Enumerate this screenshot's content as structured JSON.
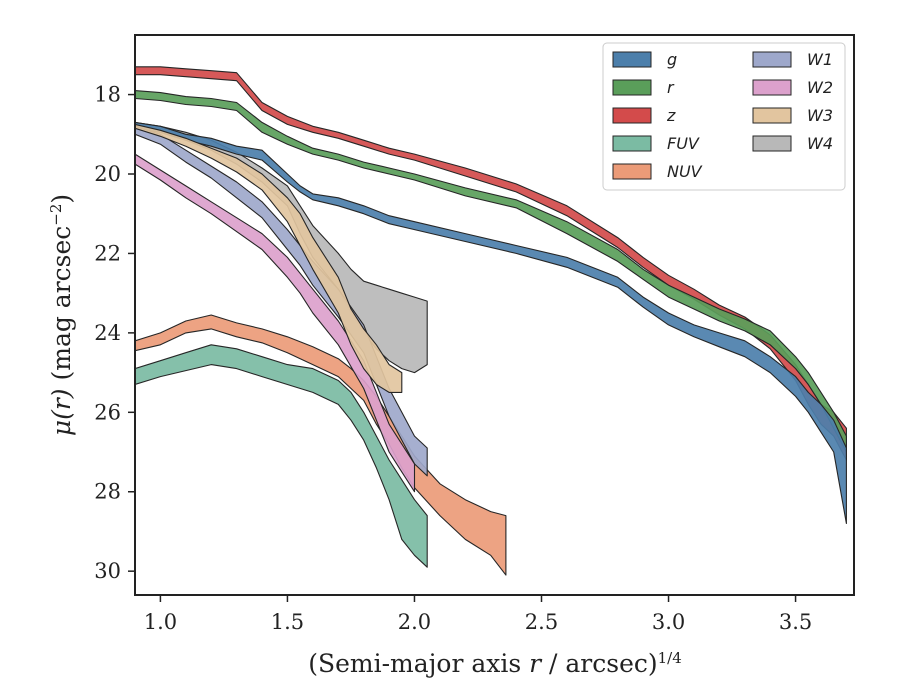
{
  "chart_data": {
    "type": "area",
    "xlabel": "(Semi-major axis r / arcsec)^1/4",
    "xlabel_parts": {
      "prefix": "(Semi-major axis ",
      "var": "r",
      "suffix": " / arcsec)",
      "sup": "1/4"
    },
    "ylabel": "μ(r) (mag arcsec^−2)",
    "ylabel_parts": {
      "var": "μ(r)",
      "text": " (mag arcsec",
      "sup": "−2",
      "close": ")"
    },
    "xlim": [
      0.9,
      3.73
    ],
    "ylim": [
      30.6,
      16.5
    ],
    "y_inverted": true,
    "xticks": [
      1.0,
      1.5,
      2.0,
      2.5,
      3.0,
      3.5
    ],
    "xtick_labels": [
      "1.0",
      "1.5",
      "2.0",
      "2.5",
      "3.0",
      "3.5"
    ],
    "yticks": [
      18,
      20,
      22,
      24,
      26,
      28,
      30
    ],
    "ytick_labels": [
      "18",
      "20",
      "22",
      "24",
      "26",
      "28",
      "30"
    ],
    "grid": false,
    "legend": {
      "placement": "top-right",
      "columns": 2
    },
    "series": [
      {
        "name": "g",
        "color": "#4c7fab",
        "zorder": 3,
        "x": [
          0.9,
          1.0,
          1.1,
          1.2,
          1.3,
          1.4,
          1.5,
          1.55,
          1.6,
          1.7,
          1.8,
          1.9,
          2.0,
          2.2,
          2.4,
          2.6,
          2.8,
          2.9,
          3.0,
          3.1,
          3.2,
          3.3,
          3.4,
          3.5,
          3.55,
          3.6,
          3.65,
          3.7
        ],
        "y_top": [
          18.7,
          18.8,
          19.0,
          19.1,
          19.3,
          19.4,
          20.0,
          20.3,
          20.5,
          20.6,
          20.8,
          21.05,
          21.2,
          21.5,
          21.8,
          22.1,
          22.6,
          23.1,
          23.5,
          23.8,
          24.0,
          24.2,
          24.6,
          25.1,
          25.5,
          25.8,
          26.2,
          26.9
        ],
        "y_bot": [
          18.85,
          18.95,
          19.15,
          19.3,
          19.5,
          19.65,
          20.2,
          20.45,
          20.65,
          20.8,
          21.0,
          21.25,
          21.4,
          21.7,
          22.0,
          22.35,
          22.85,
          23.35,
          23.8,
          24.1,
          24.35,
          24.6,
          25.0,
          25.6,
          26.0,
          26.5,
          27.0,
          28.8
        ]
      },
      {
        "name": "r",
        "color": "#5a9e5a",
        "zorder": 2,
        "x": [
          0.9,
          1.0,
          1.1,
          1.2,
          1.3,
          1.4,
          1.5,
          1.6,
          1.7,
          1.8,
          1.9,
          2.0,
          2.2,
          2.4,
          2.6,
          2.8,
          2.9,
          3.0,
          3.1,
          3.2,
          3.3,
          3.4,
          3.5,
          3.55,
          3.6,
          3.65,
          3.7
        ],
        "y_top": [
          17.9,
          17.95,
          18.05,
          18.1,
          18.2,
          18.7,
          19.05,
          19.35,
          19.5,
          19.7,
          19.85,
          20.0,
          20.35,
          20.65,
          21.2,
          21.9,
          22.4,
          22.8,
          23.1,
          23.4,
          23.65,
          23.95,
          24.6,
          25.0,
          25.5,
          26.0,
          26.6
        ],
        "y_bot": [
          18.1,
          18.15,
          18.25,
          18.3,
          18.4,
          18.95,
          19.25,
          19.5,
          19.65,
          19.85,
          20.0,
          20.15,
          20.55,
          20.85,
          21.5,
          22.2,
          22.65,
          23.1,
          23.4,
          23.7,
          23.95,
          24.3,
          24.9,
          25.3,
          25.8,
          26.4,
          27.0
        ]
      },
      {
        "name": "z",
        "color": "#d34b4b",
        "zorder": 1,
        "x": [
          0.9,
          1.0,
          1.1,
          1.2,
          1.3,
          1.4,
          1.5,
          1.6,
          1.7,
          1.8,
          1.9,
          2.0,
          2.2,
          2.4,
          2.6,
          2.8,
          2.9,
          3.0,
          3.1,
          3.2,
          3.3,
          3.4,
          3.5,
          3.55,
          3.6,
          3.65,
          3.7
        ],
        "y_top": [
          17.3,
          17.3,
          17.35,
          17.4,
          17.45,
          18.2,
          18.55,
          18.8,
          18.95,
          19.15,
          19.35,
          19.5,
          19.85,
          20.25,
          20.8,
          21.6,
          22.1,
          22.55,
          22.9,
          23.3,
          23.6,
          24.05,
          24.8,
          25.3,
          25.8,
          26.0,
          26.4
        ],
        "y_bot": [
          17.5,
          17.5,
          17.55,
          17.6,
          17.65,
          18.4,
          18.75,
          18.95,
          19.1,
          19.3,
          19.5,
          19.65,
          20.05,
          20.45,
          21.05,
          21.85,
          22.35,
          22.8,
          23.15,
          23.55,
          23.9,
          24.4,
          25.2,
          25.8,
          26.3,
          26.6,
          27.2
        ]
      },
      {
        "name": "FUV",
        "color": "#7bbba3",
        "zorder": 4,
        "x": [
          0.9,
          1.0,
          1.1,
          1.2,
          1.3,
          1.4,
          1.5,
          1.6,
          1.7,
          1.75,
          1.8,
          1.85,
          1.9,
          1.95,
          2.0,
          2.05
        ],
        "y_top": [
          24.9,
          24.7,
          24.5,
          24.3,
          24.4,
          24.6,
          24.8,
          24.9,
          25.2,
          25.5,
          26.0,
          26.6,
          27.2,
          27.7,
          28.2,
          28.6
        ],
        "y_bot": [
          25.3,
          25.1,
          24.95,
          24.8,
          24.9,
          25.1,
          25.3,
          25.5,
          25.8,
          26.2,
          26.7,
          27.4,
          28.2,
          29.2,
          29.6,
          29.9
        ]
      },
      {
        "name": "NUV",
        "color": "#eb9b78",
        "zorder": 5,
        "x": [
          0.9,
          1.0,
          1.1,
          1.2,
          1.3,
          1.4,
          1.5,
          1.6,
          1.7,
          1.75,
          1.8,
          1.85,
          1.9,
          1.95,
          2.0,
          2.1,
          2.2,
          2.3,
          2.36
        ],
        "y_top": [
          24.2,
          24.0,
          23.7,
          23.55,
          23.75,
          23.9,
          24.1,
          24.35,
          24.65,
          24.9,
          25.2,
          25.6,
          26.1,
          26.6,
          27.1,
          27.8,
          28.2,
          28.5,
          28.6
        ],
        "y_bot": [
          24.45,
          24.3,
          24.0,
          23.9,
          24.1,
          24.25,
          24.5,
          24.8,
          25.1,
          25.4,
          25.7,
          26.3,
          26.8,
          27.4,
          27.9,
          28.6,
          29.2,
          29.6,
          30.1
        ]
      },
      {
        "name": "W1",
        "color": "#9ea8cb",
        "zorder": 6,
        "x": [
          0.9,
          1.0,
          1.1,
          1.2,
          1.3,
          1.4,
          1.5,
          1.55,
          1.6,
          1.7,
          1.8,
          1.85,
          1.9,
          1.95,
          2.0,
          2.05
        ],
        "y_top": [
          18.8,
          19.0,
          19.4,
          19.8,
          20.2,
          20.7,
          21.4,
          21.8,
          22.2,
          22.9,
          23.8,
          24.6,
          25.4,
          26.0,
          26.6,
          26.9
        ],
        "y_bot": [
          19.0,
          19.25,
          19.7,
          20.1,
          20.6,
          21.1,
          21.9,
          22.3,
          22.8,
          23.6,
          24.5,
          25.3,
          26.1,
          26.7,
          27.3,
          27.6
        ]
      },
      {
        "name": "W2",
        "color": "#dca1cc",
        "zorder": 7,
        "x": [
          0.9,
          1.0,
          1.1,
          1.2,
          1.3,
          1.4,
          1.5,
          1.55,
          1.6,
          1.7,
          1.8,
          1.85,
          1.9,
          1.95,
          2.0
        ],
        "y_top": [
          19.5,
          19.9,
          20.3,
          20.7,
          21.1,
          21.5,
          22.1,
          22.5,
          22.9,
          23.7,
          24.7,
          25.5,
          26.3,
          26.8,
          27.3
        ],
        "y_bot": [
          19.75,
          20.15,
          20.6,
          21.0,
          21.45,
          21.9,
          22.6,
          23.0,
          23.5,
          24.3,
          25.4,
          26.2,
          27.0,
          27.5,
          28.0
        ]
      },
      {
        "name": "W3",
        "color": "#e2c59f",
        "zorder": 8,
        "x": [
          0.9,
          1.0,
          1.1,
          1.2,
          1.3,
          1.4,
          1.5,
          1.55,
          1.6,
          1.7,
          1.75,
          1.8,
          1.85,
          1.9,
          1.95
        ],
        "y_top": [
          18.75,
          18.9,
          19.1,
          19.35,
          19.6,
          20.0,
          20.6,
          21.0,
          21.6,
          22.6,
          23.4,
          23.9,
          24.3,
          24.8,
          25.0
        ],
        "y_bot": [
          18.85,
          19.05,
          19.3,
          19.6,
          19.95,
          20.4,
          21.2,
          21.8,
          22.4,
          23.5,
          24.3,
          24.9,
          25.3,
          25.5,
          25.5
        ]
      },
      {
        "name": "W4",
        "color": "#b8b8b8",
        "zorder": 0,
        "x": [
          0.9,
          1.0,
          1.1,
          1.2,
          1.3,
          1.4,
          1.5,
          1.55,
          1.6,
          1.7,
          1.75,
          1.8,
          1.85,
          1.9,
          1.95,
          2.0,
          2.05
        ],
        "y_top": [
          18.7,
          18.8,
          18.95,
          19.15,
          19.45,
          19.85,
          20.3,
          20.8,
          21.3,
          22.0,
          22.4,
          22.7,
          22.8,
          22.9,
          23.0,
          23.1,
          23.2
        ],
        "y_bot": [
          18.8,
          18.95,
          19.15,
          19.4,
          19.75,
          20.2,
          20.8,
          21.5,
          22.1,
          22.9,
          23.5,
          24.0,
          24.4,
          24.7,
          24.9,
          25.0,
          24.8
        ]
      }
    ]
  }
}
